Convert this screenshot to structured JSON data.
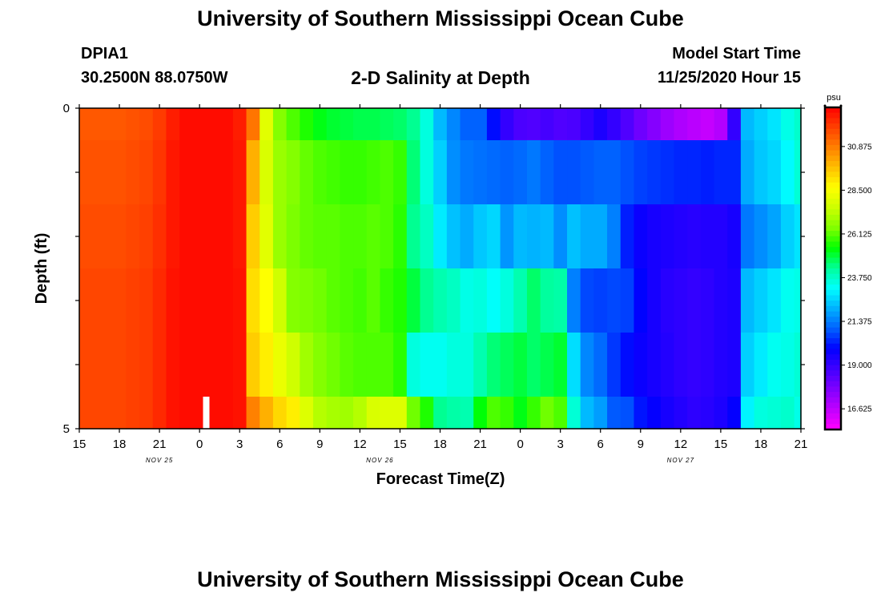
{
  "header": {
    "title": "University of Southern Mississippi Ocean Cube",
    "station": "DPIA1",
    "coordinates": "30.2500N 88.0750W",
    "plot_title": "2-D Salinity at Depth",
    "start_label": "Model Start Time",
    "start_value": "11/25/2020 Hour 15"
  },
  "footer": {
    "title": "University of Southern Mississippi Ocean Cube"
  },
  "chart_data": {
    "type": "heatmap",
    "title": "2-D Salinity at Depth",
    "xlabel": "Forecast Time(Z)",
    "ylabel": "Depth (ft)",
    "x_start_hour": 15,
    "x_step_hours": 1,
    "x_range_hours": [
      0,
      54
    ],
    "x_tick_labels": [
      "15",
      "18",
      "21",
      "0",
      "3",
      "6",
      "9",
      "12",
      "15",
      "18",
      "21",
      "0",
      "3",
      "6",
      "9",
      "12",
      "15",
      "18",
      "21"
    ],
    "date_labels": [
      {
        "text": "NOV 25",
        "hour": 6
      },
      {
        "text": "NOV 26",
        "hour": 22.5
      },
      {
        "text": "NOV 27",
        "hour": 45
      }
    ],
    "y_range": [
      0,
      5
    ],
    "y_tick_labels": [
      "0",
      "5"
    ],
    "depth_bins": [
      0,
      0.5,
      1.5,
      2.5,
      3.5,
      4.5
    ],
    "units": "psu",
    "colorbar_ticks": [
      "30.875",
      "28.500",
      "26.125",
      "23.750",
      "21.375",
      "19.000",
      "16.625"
    ],
    "colorbar_range": [
      15.5,
      33.0
    ],
    "colorbar_colors": [
      "#ff00ff",
      "#c000ff",
      "#8000ff",
      "#4000ff",
      "#0000ff",
      "#0060ff",
      "#00b0ff",
      "#00ffff",
      "#00ff99",
      "#00ff00",
      "#80ff00",
      "#ccff00",
      "#ffff00",
      "#ffc000",
      "#ff8000",
      "#ff4000",
      "#ff0000"
    ],
    "current_time_hour": 9.5,
    "values": [
      [
        31.5,
        31.5,
        31.5,
        31.5,
        31.6,
        31.7,
        32.0,
        32.5,
        32.8,
        32.8,
        32.8,
        32.8,
        32.5,
        31.0,
        28.0,
        26.5,
        26.0,
        25.6,
        25.2,
        25.0,
        24.9,
        24.8,
        24.8,
        24.7,
        24.6,
        24.3,
        23.5,
        22.2,
        21.5,
        21.0,
        21.0,
        20.0,
        19.0,
        18.6,
        18.5,
        18.7,
        18.5,
        18.6,
        19.0,
        19.4,
        19.0,
        18.5,
        18.0,
        17.6,
        17.2,
        16.9,
        16.7,
        16.5,
        16.8,
        19.0,
        22.2,
        22.5,
        22.8,
        23.4,
        23.7
      ],
      [
        31.6,
        31.6,
        31.6,
        31.6,
        31.7,
        31.8,
        32.1,
        32.6,
        32.8,
        32.8,
        32.8,
        32.8,
        32.6,
        30.0,
        27.8,
        26.8,
        26.5,
        26.2,
        26.0,
        25.9,
        25.8,
        25.8,
        25.9,
        26.0,
        25.8,
        24.5,
        23.5,
        22.5,
        21.6,
        21.3,
        21.2,
        21.1,
        21.0,
        21.1,
        21.3,
        21.0,
        20.8,
        20.8,
        20.9,
        21.0,
        21.0,
        20.8,
        20.6,
        20.5,
        20.4,
        20.3,
        20.3,
        20.2,
        20.3,
        20.3,
        22.0,
        22.4,
        22.6,
        23.1,
        23.6
      ],
      [
        31.7,
        31.7,
        31.7,
        31.7,
        31.8,
        31.9,
        32.2,
        32.6,
        32.8,
        32.8,
        32.8,
        32.8,
        32.6,
        29.5,
        28.0,
        26.8,
        26.4,
        26.2,
        26.1,
        26.1,
        26.0,
        26.0,
        26.1,
        26.0,
        25.7,
        24.3,
        23.8,
        22.9,
        22.3,
        22.0,
        22.4,
        22.6,
        21.7,
        22.2,
        22.1,
        22.2,
        21.6,
        22.3,
        22.0,
        22.0,
        21.4,
        20.2,
        19.7,
        19.5,
        19.4,
        19.3,
        19.2,
        19.3,
        19.3,
        19.5,
        21.3,
        21.6,
        21.9,
        22.5,
        22.8
      ],
      [
        31.8,
        31.8,
        31.8,
        31.8,
        31.9,
        32.0,
        32.3,
        32.7,
        32.8,
        32.8,
        32.8,
        32.8,
        32.7,
        29.2,
        28.6,
        27.6,
        26.5,
        26.4,
        26.3,
        26.1,
        26.0,
        25.9,
        26.1,
        25.8,
        25.6,
        24.9,
        24.3,
        24.0,
        23.8,
        23.4,
        23.5,
        23.2,
        23.5,
        24.0,
        24.6,
        24.2,
        24.1,
        21.4,
        20.7,
        20.6,
        20.7,
        20.6,
        19.9,
        19.5,
        19.2,
        19.1,
        19.0,
        19.1,
        19.3,
        19.4,
        22.2,
        22.5,
        22.8,
        23.3,
        23.4
      ],
      [
        31.8,
        31.8,
        31.8,
        31.8,
        31.9,
        32.0,
        32.3,
        32.7,
        32.8,
        32.8,
        32.8,
        32.8,
        32.7,
        29.5,
        28.9,
        28.2,
        27.6,
        26.9,
        26.5,
        26.3,
        26.1,
        26.0,
        26.0,
        26.0,
        25.7,
        23.5,
        23.3,
        23.3,
        23.5,
        23.5,
        24.0,
        24.5,
        24.7,
        24.9,
        24.6,
        24.8,
        25.0,
        22.7,
        21.5,
        21.1,
        20.5,
        20.0,
        19.7,
        19.5,
        19.3,
        19.1,
        19.0,
        19.1,
        19.3,
        19.4,
        22.5,
        22.9,
        23.3,
        23.4,
        23.6
      ],
      [
        31.8,
        31.8,
        31.8,
        31.8,
        31.9,
        32.0,
        32.3,
        32.7,
        32.8,
        32.8,
        32.8,
        32.8,
        32.7,
        30.8,
        30.0,
        29.3,
        28.9,
        27.9,
        27.2,
        27.0,
        26.9,
        27.2,
        27.8,
        27.9,
        27.9,
        26.3,
        25.6,
        24.3,
        24.1,
        24.0,
        25.3,
        26.0,
        25.8,
        25.2,
        25.8,
        26.3,
        26.0,
        23.6,
        22.2,
        21.8,
        20.9,
        20.8,
        20.1,
        19.8,
        19.5,
        19.3,
        19.1,
        19.2,
        19.4,
        19.8,
        23.0,
        23.5,
        23.6,
        23.7,
        23.4
      ]
    ]
  }
}
